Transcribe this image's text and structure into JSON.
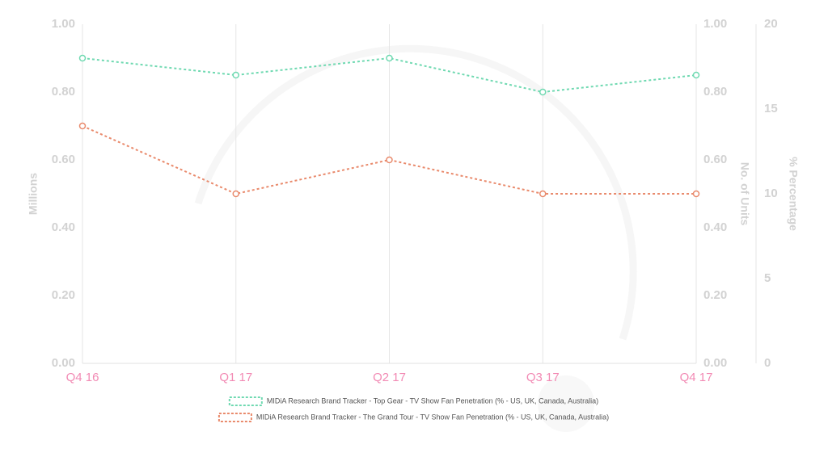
{
  "chart_data": {
    "type": "line",
    "categories": [
      "Q4 16",
      "Q1 17",
      "Q2 17",
      "Q3 17",
      "Q4 17"
    ],
    "y_label": "Millions",
    "y2_label": "No. of Units",
    "y3_label": "% Percentage",
    "ylim": [
      0,
      1
    ],
    "yticks": [
      {
        "value": 0,
        "label": "0.00"
      },
      {
        "value": 0.2,
        "label": "0.20"
      },
      {
        "value": 0.4,
        "label": "0.40"
      },
      {
        "value": 0.6,
        "label": "0.60"
      },
      {
        "value": 0.8,
        "label": "0.80"
      },
      {
        "value": 1,
        "label": "1.00"
      }
    ],
    "y2lim": [
      0,
      1
    ],
    "y2ticks": [
      {
        "value": 0,
        "label": "0.00"
      },
      {
        "value": 0.2,
        "label": "0.20"
      },
      {
        "value": 0.4,
        "label": "0.40"
      },
      {
        "value": 0.6,
        "label": "0.60"
      },
      {
        "value": 0.8,
        "label": "0.80"
      },
      {
        "value": 1,
        "label": "1.00"
      }
    ],
    "y3lim": [
      0,
      20
    ],
    "y3ticks": [
      0,
      5,
      10,
      15,
      20
    ],
    "series": [
      {
        "name": "MIDiA Research Brand Tracker - Top Gear - TV Show Fan Penetration (% - US, UK, Canada, Australia)",
        "color": "#6fd9b1",
        "axis": "y3",
        "values": [
          18,
          17,
          18,
          16,
          17
        ]
      },
      {
        "name": "MIDiA Research Brand Tracker - The Grand Tour - TV Show Fan Penetration (% - US, UK, Canada, Australia)",
        "color": "#e98a6c",
        "axis": "y3",
        "values": [
          14,
          10,
          12,
          10,
          10
        ]
      }
    ]
  }
}
